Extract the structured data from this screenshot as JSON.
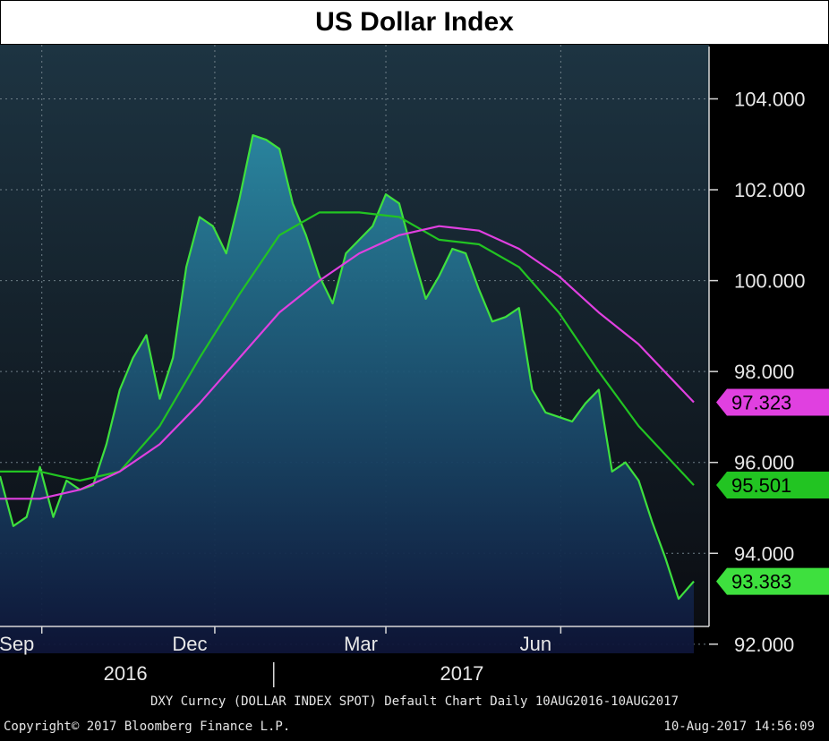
{
  "chart_data": {
    "type": "line",
    "title": "US Dollar Index",
    "x_range": [
      "2016-08-10",
      "2017-08-10"
    ],
    "ylim": [
      91.8,
      104.6
    ],
    "y_ticks": [
      "104.000",
      "102.000",
      "100.000",
      "98.000",
      "96.000",
      "94.000",
      "92.000"
    ],
    "y_tick_values": [
      104,
      102,
      100,
      98,
      96,
      94,
      92
    ],
    "x_tick_labels": [
      {
        "label": "Sep",
        "date": "2016-09-01"
      },
      {
        "label": "Dec",
        "date": "2016-12-01"
      },
      {
        "label": "Mar",
        "date": "2017-03-01"
      },
      {
        "label": "Jun",
        "date": "2017-06-01"
      }
    ],
    "year_labels": [
      {
        "label": "2016",
        "date": "2016-10-15"
      },
      {
        "label": "2017",
        "date": "2017-04-10"
      }
    ],
    "grid": true,
    "series": [
      {
        "color": "#3ee03e",
        "last_value_label": "93.383",
        "area_fill": true,
        "points": [
          [
            "2016-08-10",
            95.7
          ],
          [
            "2016-08-17",
            94.6
          ],
          [
            "2016-08-24",
            94.8
          ],
          [
            "2016-08-31",
            95.9
          ],
          [
            "2016-09-07",
            94.8
          ],
          [
            "2016-09-14",
            95.6
          ],
          [
            "2016-09-21",
            95.4
          ],
          [
            "2016-09-28",
            95.5
          ],
          [
            "2016-10-05",
            96.4
          ],
          [
            "2016-10-12",
            97.6
          ],
          [
            "2016-10-19",
            98.3
          ],
          [
            "2016-10-26",
            98.8
          ],
          [
            "2016-11-02",
            97.4
          ],
          [
            "2016-11-09",
            98.3
          ],
          [
            "2016-11-16",
            100.3
          ],
          [
            "2016-11-23",
            101.4
          ],
          [
            "2016-11-30",
            101.2
          ],
          [
            "2016-12-07",
            100.6
          ],
          [
            "2016-12-14",
            101.8
          ],
          [
            "2016-12-21",
            103.2
          ],
          [
            "2016-12-28",
            103.1
          ],
          [
            "2017-01-04",
            102.9
          ],
          [
            "2017-01-11",
            101.7
          ],
          [
            "2017-01-18",
            101.0
          ],
          [
            "2017-01-25",
            100.1
          ],
          [
            "2017-02-01",
            99.5
          ],
          [
            "2017-02-08",
            100.6
          ],
          [
            "2017-02-15",
            100.9
          ],
          [
            "2017-02-22",
            101.2
          ],
          [
            "2017-03-01",
            101.9
          ],
          [
            "2017-03-08",
            101.7
          ],
          [
            "2017-03-15",
            100.6
          ],
          [
            "2017-03-22",
            99.6
          ],
          [
            "2017-03-29",
            100.1
          ],
          [
            "2017-04-05",
            100.7
          ],
          [
            "2017-04-12",
            100.6
          ],
          [
            "2017-04-19",
            99.8
          ],
          [
            "2017-04-26",
            99.1
          ],
          [
            "2017-05-03",
            99.2
          ],
          [
            "2017-05-10",
            99.4
          ],
          [
            "2017-05-17",
            97.6
          ],
          [
            "2017-05-24",
            97.1
          ],
          [
            "2017-05-31",
            97.0
          ],
          [
            "2017-06-07",
            96.9
          ],
          [
            "2017-06-14",
            97.3
          ],
          [
            "2017-06-21",
            97.6
          ],
          [
            "2017-06-28",
            95.8
          ],
          [
            "2017-07-05",
            96.0
          ],
          [
            "2017-07-12",
            95.6
          ],
          [
            "2017-07-19",
            94.7
          ],
          [
            "2017-07-26",
            93.9
          ],
          [
            "2017-08-02",
            93.0
          ],
          [
            "2017-08-10",
            93.383
          ]
        ]
      },
      {
        "color": "#22c422",
        "last_value_label": "95.501",
        "area_fill": false,
        "points": [
          [
            "2016-08-10",
            95.8
          ],
          [
            "2016-08-31",
            95.8
          ],
          [
            "2016-09-21",
            95.6
          ],
          [
            "2016-10-12",
            95.8
          ],
          [
            "2016-11-02",
            96.8
          ],
          [
            "2016-11-23",
            98.3
          ],
          [
            "2016-12-14",
            99.7
          ],
          [
            "2017-01-04",
            101.0
          ],
          [
            "2017-01-25",
            101.5
          ],
          [
            "2017-02-15",
            101.5
          ],
          [
            "2017-03-08",
            101.4
          ],
          [
            "2017-03-29",
            100.9
          ],
          [
            "2017-04-19",
            100.8
          ],
          [
            "2017-05-10",
            100.3
          ],
          [
            "2017-05-31",
            99.3
          ],
          [
            "2017-06-21",
            98.0
          ],
          [
            "2017-07-12",
            96.8
          ],
          [
            "2017-08-10",
            95.501
          ]
        ]
      },
      {
        "color": "#e040e0",
        "last_value_label": "97.323",
        "area_fill": false,
        "points": [
          [
            "2016-08-10",
            95.2
          ],
          [
            "2016-08-31",
            95.2
          ],
          [
            "2016-09-21",
            95.4
          ],
          [
            "2016-10-12",
            95.8
          ],
          [
            "2016-11-02",
            96.4
          ],
          [
            "2016-11-23",
            97.3
          ],
          [
            "2016-12-14",
            98.3
          ],
          [
            "2017-01-04",
            99.3
          ],
          [
            "2017-01-25",
            100.0
          ],
          [
            "2017-02-15",
            100.6
          ],
          [
            "2017-03-08",
            101.0
          ],
          [
            "2017-03-29",
            101.2
          ],
          [
            "2017-04-19",
            101.1
          ],
          [
            "2017-05-10",
            100.7
          ],
          [
            "2017-05-31",
            100.1
          ],
          [
            "2017-06-21",
            99.3
          ],
          [
            "2017-07-12",
            98.6
          ],
          [
            "2017-08-10",
            97.323
          ]
        ]
      }
    ]
  },
  "footer": {
    "description": "DXY Curncy (DOLLAR INDEX SPOT) Default Chart  Daily 10AUG2016-10AUG2017",
    "copyright": "Copyright© 2017 Bloomberg Finance L.P.",
    "timestamp": "10-Aug-2017 14:56:09"
  }
}
